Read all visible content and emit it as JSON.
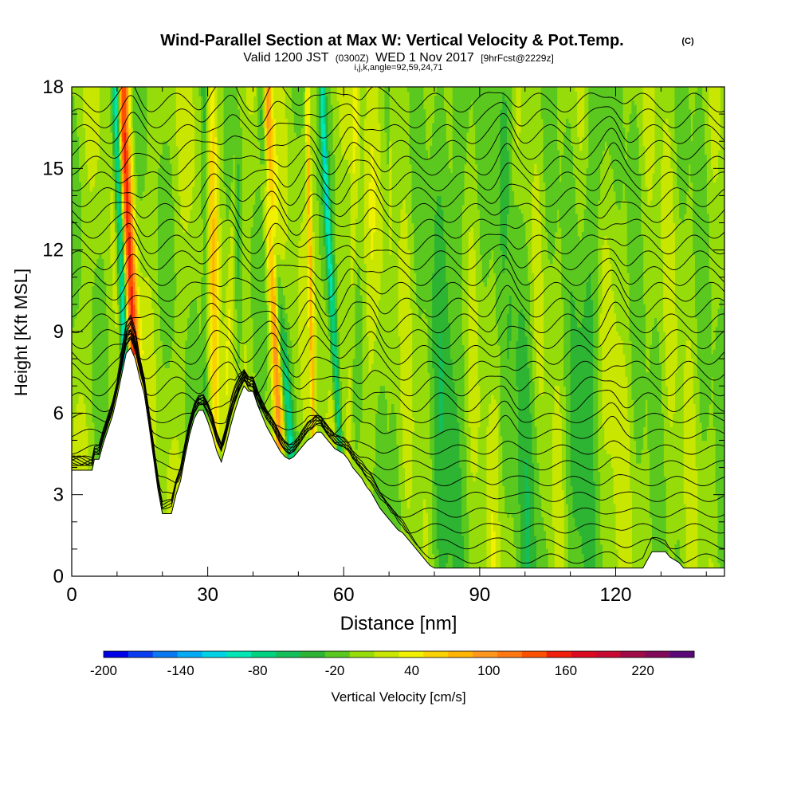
{
  "chart_data": {
    "type": "heatmap",
    "title": "Wind-Parallel Section at Max W: Vertical Velocity & Pot.Temp.",
    "title_mark": "(C)",
    "subtitle_valid": "Valid 1200 JST",
    "subtitle_z": "(0300Z)",
    "subtitle_date": "WED 1 Nov 2017",
    "subtitle_fcst": "[9hrFcst@2229z]",
    "subtitle_ijk": "i,j,k,angle=92,59,24,71",
    "xlabel": "Distance [nm]",
    "ylabel": "Height [Kft MSL]",
    "xlim": [
      0,
      144
    ],
    "ylim": [
      0,
      18
    ],
    "x_ticks": [
      0,
      30,
      60,
      90,
      120
    ],
    "y_ticks": [
      0,
      3,
      6,
      9,
      12,
      15,
      18
    ],
    "colorbar": {
      "label": "Vertical Velocity [cm/s]",
      "ticks": [
        "-200",
        "-140",
        "-80",
        "-20",
        "40",
        "100",
        "160",
        "220"
      ],
      "tick_values": [
        -200,
        -140,
        -80,
        -20,
        40,
        100,
        160,
        220
      ],
      "min": -200,
      "max": 260,
      "step": 20,
      "colors": [
        "#0000e6",
        "#0a3cf0",
        "#0a78f0",
        "#00aaf5",
        "#00d2e6",
        "#00e6b4",
        "#00d282",
        "#14be5a",
        "#2db432",
        "#5ac81e",
        "#96dc0a",
        "#c8e600",
        "#f0f000",
        "#fad200",
        "#ffb400",
        "#ff961e",
        "#ff7814",
        "#ff5000",
        "#f01e0a",
        "#dc0a1e",
        "#c80a32",
        "#a00a46",
        "#820a5a",
        "#5a0a78"
      ]
    },
    "terrain": [
      [
        0,
        3.9
      ],
      [
        4.5,
        3.9
      ],
      [
        5,
        4.3
      ],
      [
        6,
        4.3
      ],
      [
        7,
        4.9
      ],
      [
        8,
        5.4
      ],
      [
        9,
        5.9
      ],
      [
        10,
        6.6
      ],
      [
        11,
        7.4
      ],
      [
        12,
        8.2
      ],
      [
        13,
        8.4
      ],
      [
        14,
        8.0
      ],
      [
        15,
        7.3
      ],
      [
        16,
        6.7
      ],
      [
        17,
        5.6
      ],
      [
        18,
        4.4
      ],
      [
        19,
        3.2
      ],
      [
        20,
        2.3
      ],
      [
        22,
        2.3
      ],
      [
        23,
        3.0
      ],
      [
        24,
        3.5
      ],
      [
        25,
        4.4
      ],
      [
        26,
        5.2
      ],
      [
        27,
        5.8
      ],
      [
        28,
        6.1
      ],
      [
        29,
        6.1
      ],
      [
        30,
        5.7
      ],
      [
        31,
        5.2
      ],
      [
        32,
        4.6
      ],
      [
        33,
        4.2
      ],
      [
        34,
        4.8
      ],
      [
        35,
        5.5
      ],
      [
        36,
        6.1
      ],
      [
        37,
        6.6
      ],
      [
        38,
        7.0
      ],
      [
        39,
        6.8
      ],
      [
        40,
        6.8
      ],
      [
        41,
        6.3
      ],
      [
        42,
        5.9
      ],
      [
        43,
        5.5
      ],
      [
        44,
        5.2
      ],
      [
        45,
        4.9
      ],
      [
        46,
        4.6
      ],
      [
        47,
        4.4
      ],
      [
        48,
        4.3
      ],
      [
        49,
        4.4
      ],
      [
        50,
        4.6
      ],
      [
        51,
        4.8
      ],
      [
        52,
        5.0
      ],
      [
        53,
        5.1
      ],
      [
        54,
        5.3
      ],
      [
        55,
        5.3
      ],
      [
        56,
        5.1
      ],
      [
        57,
        4.9
      ],
      [
        58,
        4.7
      ],
      [
        59,
        4.6
      ],
      [
        60,
        4.5
      ],
      [
        61,
        4.3
      ],
      [
        62,
        4.0
      ],
      [
        63,
        3.8
      ],
      [
        64,
        3.6
      ],
      [
        65,
        3.3
      ],
      [
        66,
        3.1
      ],
      [
        67,
        2.8
      ],
      [
        68,
        2.5
      ],
      [
        69,
        2.3
      ],
      [
        70,
        2.1
      ],
      [
        71,
        1.9
      ],
      [
        72,
        1.7
      ],
      [
        73,
        1.6
      ],
      [
        74,
        1.4
      ],
      [
        75,
        1.2
      ],
      [
        76,
        1.0
      ],
      [
        77,
        0.8
      ],
      [
        78,
        0.6
      ],
      [
        79,
        0.4
      ],
      [
        80,
        0.3
      ],
      [
        126,
        0.3
      ],
      [
        127,
        0.6
      ],
      [
        128,
        0.9
      ],
      [
        131,
        0.9
      ],
      [
        132,
        0.7
      ],
      [
        134,
        0.5
      ],
      [
        135,
        0.3
      ],
      [
        144,
        0.3
      ]
    ],
    "updrafts": [
      {
        "x0": 14.8,
        "x1": 11.4,
        "w": 0.9,
        "value": 160
      },
      {
        "x0": 31.8,
        "x1": 31.0,
        "w": 0.6,
        "value": 60
      },
      {
        "x0": 33.4,
        "x1": 36.5,
        "w": 0.5,
        "value": 40
      },
      {
        "x0": 46.1,
        "x1": 43.0,
        "w": 0.8,
        "value": 120
      },
      {
        "x0": 53.5,
        "x1": 52.0,
        "w": 0.3,
        "value": 80
      },
      {
        "x0": 61.0,
        "x1": 62.6,
        "w": 0.6,
        "value": 40
      },
      {
        "x0": 65.5,
        "x1": 66.4,
        "w": 0.8,
        "value": 20
      },
      {
        "x0": 93.0,
        "x1": 98.5,
        "w": 0.6,
        "value": 20
      },
      {
        "x0": 120.0,
        "x1": 119.0,
        "w": 1.0,
        "value": 20
      }
    ],
    "downdrafts": [
      {
        "x0": 12.6,
        "x1": 9.8,
        "w": 0.6,
        "value": -120
      },
      {
        "x0": 29.4,
        "x1": 29.1,
        "w": 0.4,
        "value": -20
      },
      {
        "x0": 37.2,
        "x1": 36.4,
        "w": 0.5,
        "value": -20
      },
      {
        "x0": 48.8,
        "x1": 42.0,
        "w": 0.7,
        "value": -60
      },
      {
        "x0": 59.3,
        "x1": 55.3,
        "w": 0.5,
        "value": -80
      },
      {
        "x0": 82.0,
        "x1": 84.0,
        "w": 2.5,
        "value": -20
      },
      {
        "x0": 101.0,
        "x1": 96.0,
        "w": 2.0,
        "value": -20
      },
      {
        "x0": 112.0,
        "x1": 116.0,
        "w": 2.0,
        "value": -20
      }
    ],
    "theta_contours": {
      "count": 30,
      "label_prefix": "3"
    }
  }
}
